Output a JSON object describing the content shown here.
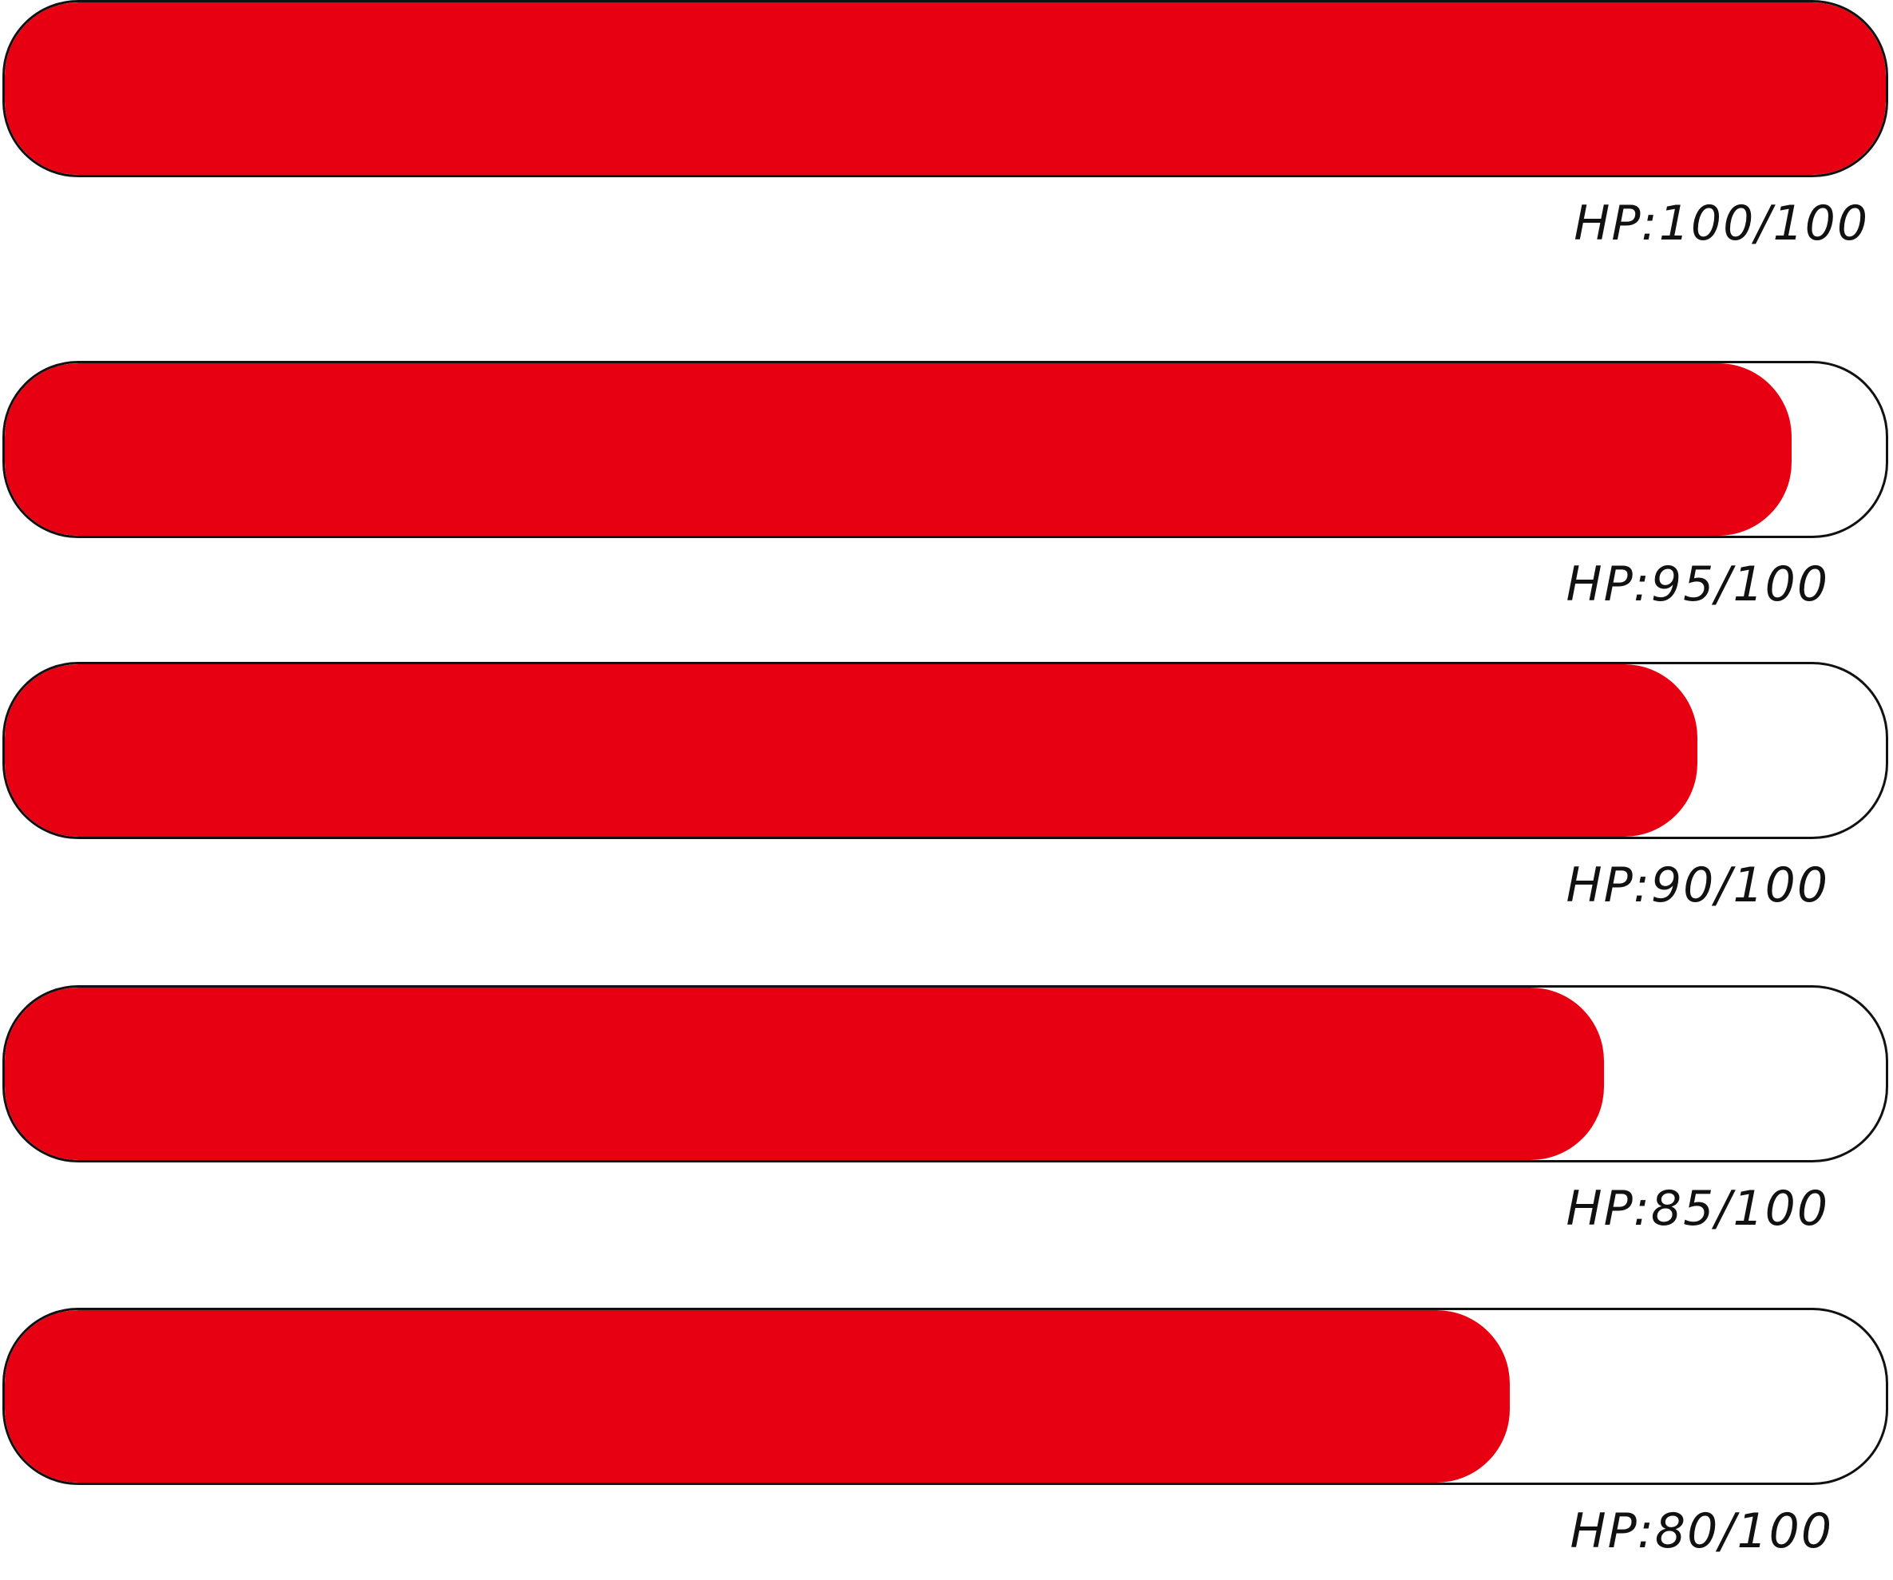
{
  "colors": {
    "fill": "#e60012",
    "track": "#ffffff",
    "outline": "#111111"
  },
  "bars": [
    {
      "label": "HP:100/100",
      "current": 100,
      "max": 100
    },
    {
      "label": "HP:95/100",
      "current": 95,
      "max": 100
    },
    {
      "label": "HP:90/100",
      "current": 90,
      "max": 100
    },
    {
      "label": "HP:85/100",
      "current": 85,
      "max": 100
    },
    {
      "label": "HP:80/100",
      "current": 80,
      "max": 100
    }
  ]
}
